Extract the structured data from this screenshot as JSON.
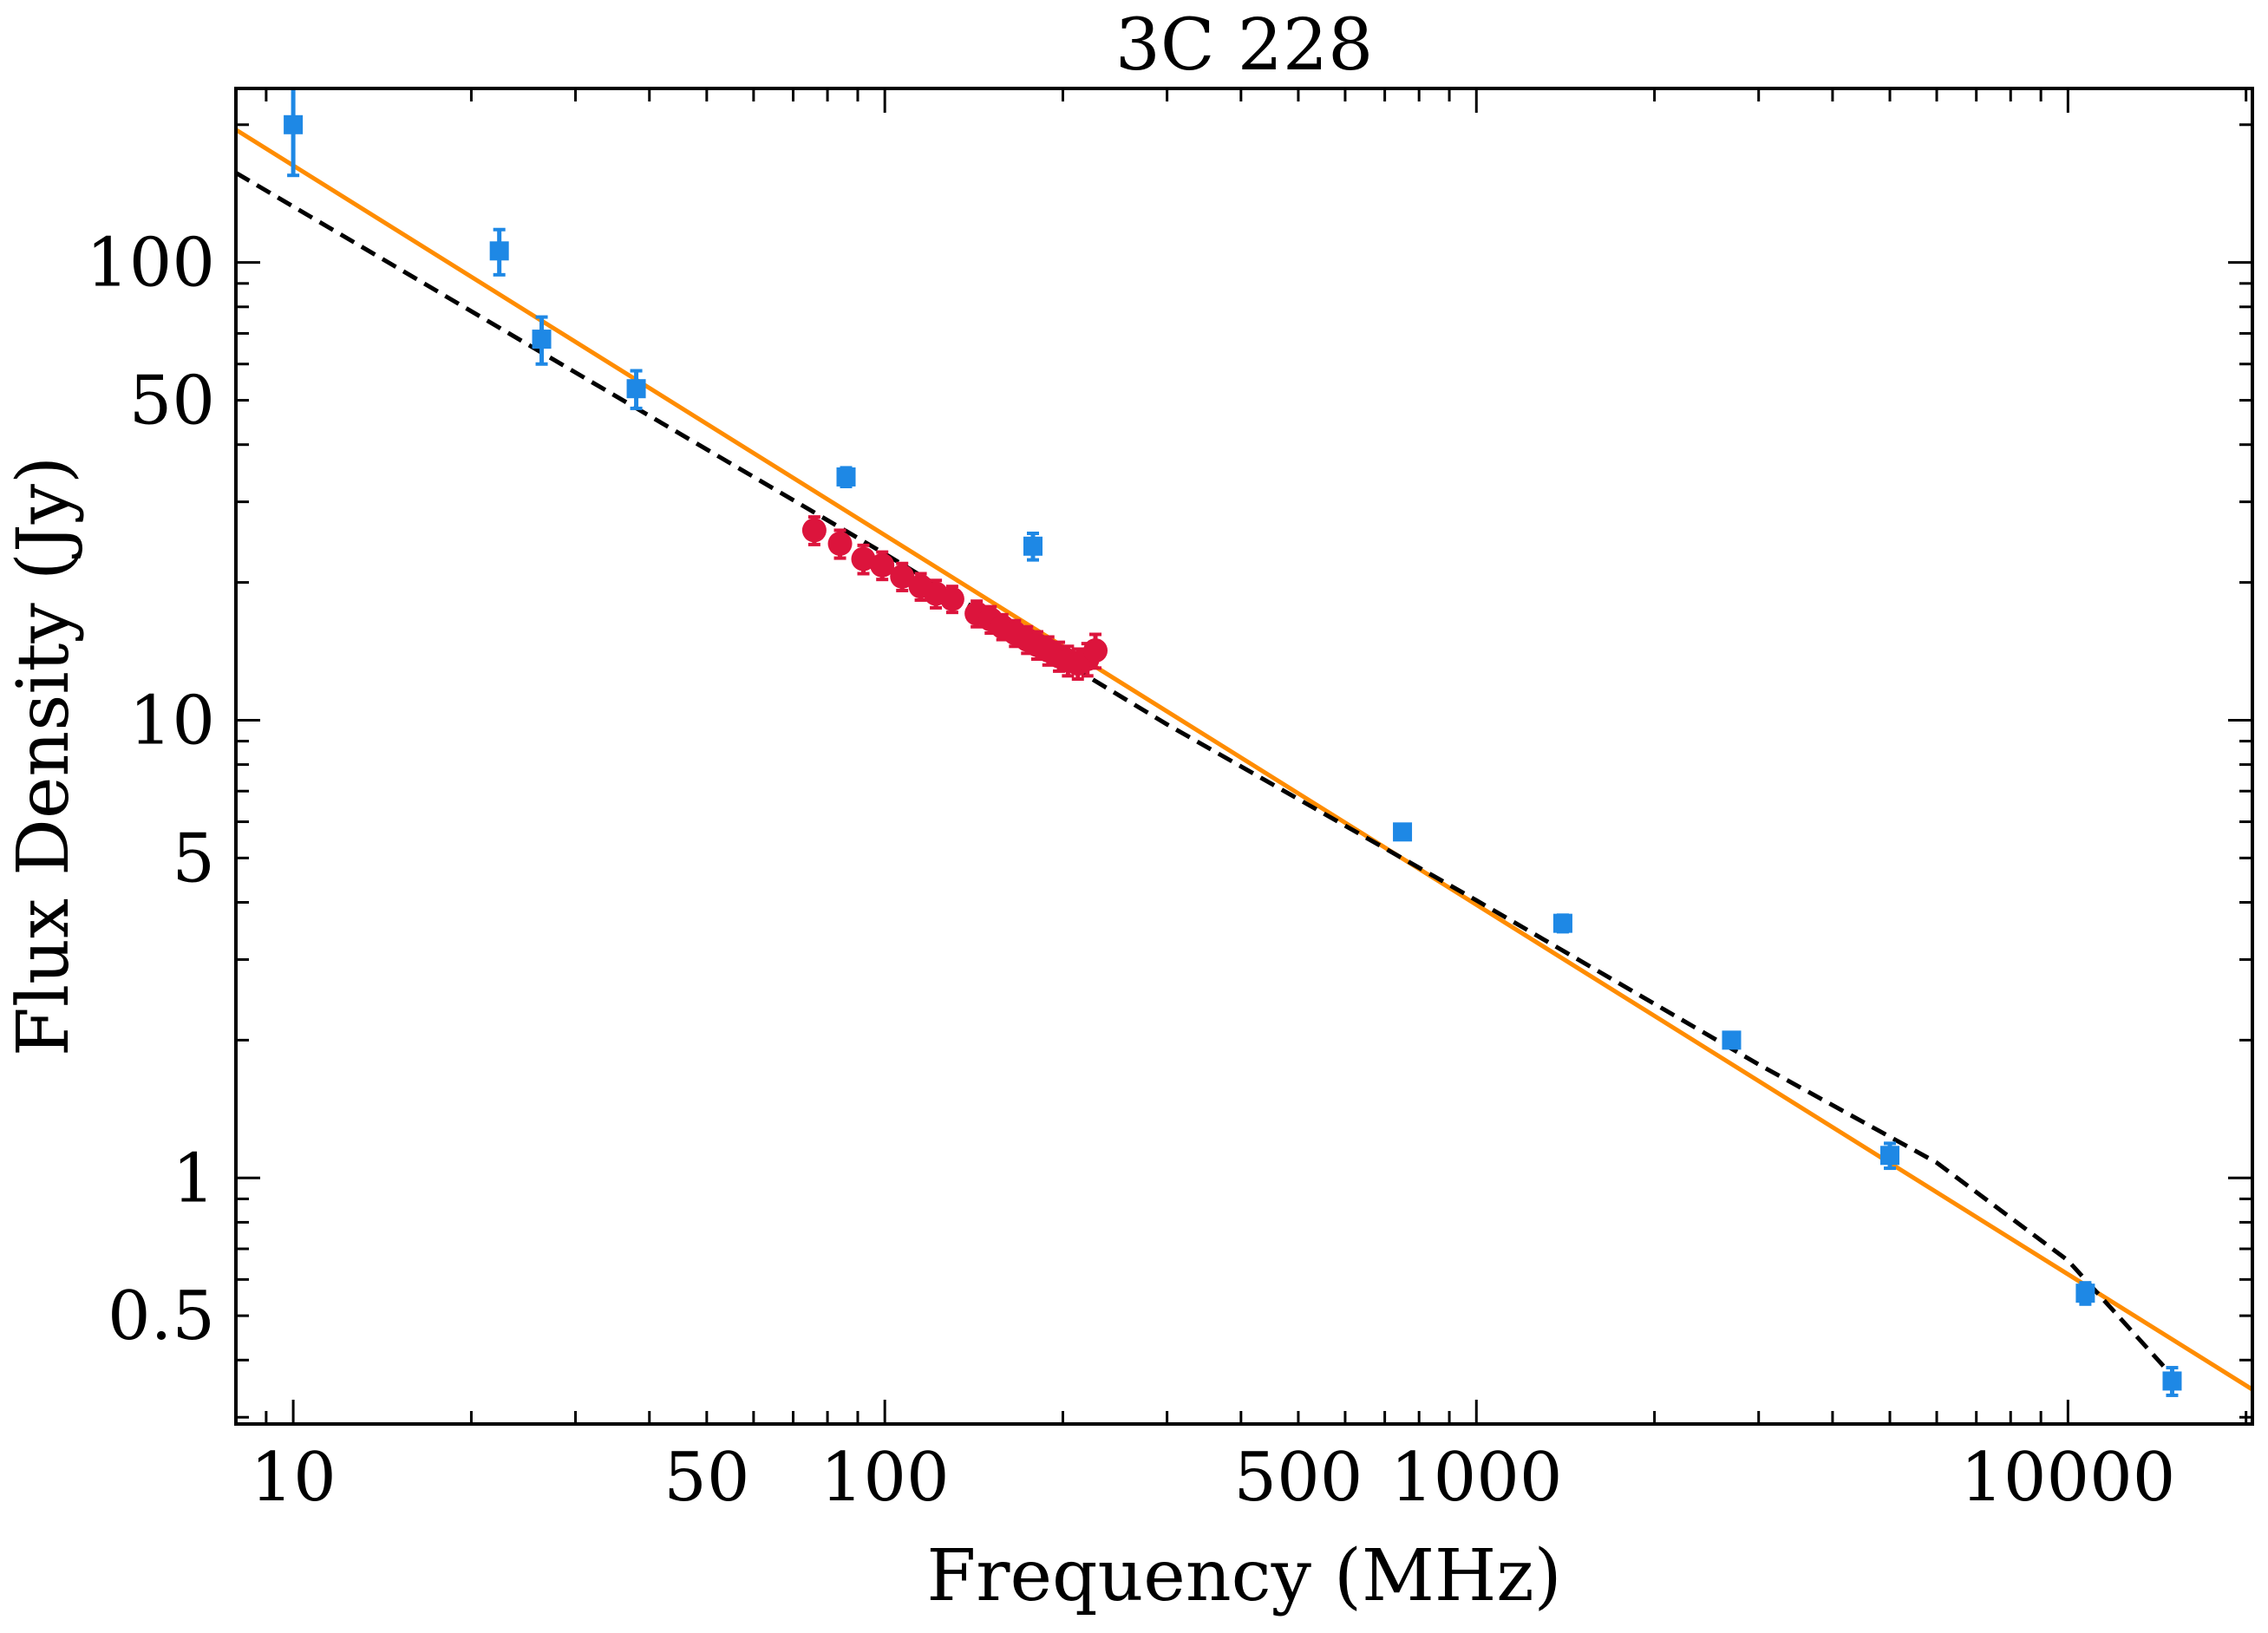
{
  "chart_data": {
    "type": "scatter",
    "title": "3C 228",
    "xlabel": "Frequency (MHz)",
    "ylabel": "Flux Density (Jy)",
    "xscale": "log",
    "yscale": "log",
    "xlim": [
      8,
      20500
    ],
    "ylim": [
      0.29,
      240
    ],
    "grid": false,
    "xticks": [
      10,
      50,
      100,
      500,
      1000,
      10000
    ],
    "xtick_labels": [
      "10",
      "50",
      "100",
      "500",
      "1000",
      "10000"
    ],
    "yticks": [
      0.5,
      1,
      5,
      10,
      50,
      100
    ],
    "ytick_labels": [
      "0.5",
      "1",
      "5",
      "10",
      "50",
      "100"
    ],
    "series": [
      {
        "marker": "square",
        "color": "#1e88e5",
        "x": [
          10,
          22.3,
          26.3,
          38,
          86,
          178,
          750,
          1400,
          2700,
          5000,
          10700,
          15000
        ],
        "y": [
          200,
          106,
          68,
          53,
          34,
          24,
          5.7,
          3.6,
          2.0,
          1.12,
          0.56,
          0.36
        ],
        "yerr": [
          45,
          12,
          8,
          5,
          1.6,
          1.6,
          0.2,
          0.15,
          0.06,
          0.07,
          0.03,
          0.025
        ]
      },
      {
        "marker": "circle",
        "color": "#dc143c",
        "x": [
          76,
          84,
          92,
          99,
          107,
          115,
          122,
          130,
          143,
          151,
          158,
          166,
          174,
          181,
          189,
          197,
          204,
          212,
          220,
          227
        ],
        "y": [
          26,
          24.3,
          22.5,
          21.8,
          20.6,
          19.6,
          18.9,
          18.4,
          17.1,
          16.6,
          16.0,
          15.5,
          15.0,
          14.6,
          14.2,
          13.8,
          13.5,
          13.3,
          13.6,
          14.2
        ],
        "yerr": [
          1.8,
          1.7,
          1.6,
          1.5,
          1.4,
          1.3,
          1.3,
          1.2,
          1.1,
          1.1,
          1.0,
          1.0,
          1.0,
          1.0,
          1.0,
          1.0,
          1.0,
          1.0,
          1.1,
          1.2
        ]
      }
    ],
    "lines": [
      {
        "style": "solid",
        "color": "#ff8c00",
        "x": [
          8,
          20500
        ],
        "y": [
          195,
          0.345
        ]
      },
      {
        "style": "dashed",
        "color": "#000000",
        "x": [
          8,
          30,
          100,
          300,
          1000,
          3000,
          6000,
          10000,
          15000
        ],
        "y": [
          157,
          57.5,
          23.1,
          9.79,
          4.04,
          1.77,
          1.08,
          0.66,
          0.37
        ]
      }
    ]
  }
}
